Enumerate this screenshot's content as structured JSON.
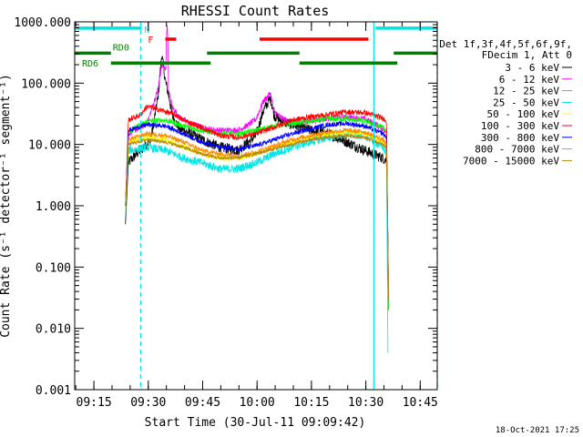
{
  "chart_data": {
    "type": "line",
    "title": "RHESSI Count Rates",
    "xlabel": "Start Time (30-Jul-11 09:09:42)",
    "ylabel": "Count Rate (s⁻¹ detector⁻¹ segment⁻¹)",
    "yscale": "log",
    "ylim": [
      0.001,
      1000
    ],
    "xlim_minutes": [
      0,
      100
    ],
    "y_ticks": [
      {
        "v": 1000,
        "label": "1000.000"
      },
      {
        "v": 100,
        "label": "100.000"
      },
      {
        "v": 10,
        "label": "10.000"
      },
      {
        "v": 1,
        "label": "1.000"
      },
      {
        "v": 0.1,
        "label": "0.100"
      },
      {
        "v": 0.01,
        "label": "0.010"
      },
      {
        "v": 0.001,
        "label": "0.001"
      }
    ],
    "x_ticks": [
      {
        "m": 5.3,
        "label": "09:15"
      },
      {
        "m": 20.3,
        "label": "09:30"
      },
      {
        "m": 35.3,
        "label": "09:45"
      },
      {
        "m": 50.3,
        "label": "10:00"
      },
      {
        "m": 65.3,
        "label": "10:15"
      },
      {
        "m": 80.3,
        "label": "10:30"
      },
      {
        "m": 95.3,
        "label": "10:45"
      }
    ],
    "legend": {
      "header": [
        "Det 1f,3f,4f,5f,6f,9f,",
        "FDecim 1, Att 0"
      ],
      "position": "right"
    },
    "vlines": [
      {
        "m": 18.2,
        "color": "#00e5e5",
        "style": "dashed"
      },
      {
        "m": 82.5,
        "color": "#00e5e5",
        "style": "solid"
      },
      {
        "m": 100.0,
        "color": "#00e5e5",
        "style": "dashed"
      }
    ],
    "flag_bars": [
      {
        "label": "",
        "color": "#00e5e5",
        "y": 0.017,
        "segments": [
          [
            0,
            18.5
          ],
          [
            83,
            100
          ]
        ]
      },
      {
        "label": "N",
        "color": "#00e5e5",
        "y": 0.02,
        "segments": []
      },
      {
        "label": "F",
        "color": "#ff0000",
        "y": 0.047,
        "segments": [
          [
            25,
            28
          ],
          [
            51,
            81
          ]
        ]
      },
      {
        "label": "RD0",
        "color": "#008000",
        "y": 0.085,
        "segments": [
          [
            0,
            10
          ],
          [
            36.5,
            62
          ],
          [
            88,
            100
          ]
        ]
      },
      {
        "label": "RD6",
        "color": "#008000",
        "y": 0.112,
        "segments": [
          [
            10,
            37.5
          ],
          [
            62,
            89
          ]
        ]
      }
    ],
    "time_range_minutes": [
      14,
      87
    ],
    "series": [
      {
        "name": "3 - 6 keV",
        "color": "#000000",
        "noise": 0.18,
        "spike": null,
        "points": [
          [
            14,
            0.5
          ],
          [
            14.8,
            5
          ],
          [
            17,
            7
          ],
          [
            19,
            9
          ],
          [
            21,
            12
          ],
          [
            23,
            60
          ],
          [
            24,
            300
          ],
          [
            25,
            110
          ],
          [
            26,
            60
          ],
          [
            27,
            28
          ],
          [
            29,
            18
          ],
          [
            32,
            15
          ],
          [
            35,
            12
          ],
          [
            40,
            9
          ],
          [
            45,
            8
          ],
          [
            48,
            11
          ],
          [
            50,
            14
          ],
          [
            52,
            35
          ],
          [
            54,
            58
          ],
          [
            55,
            30
          ],
          [
            57,
            24
          ],
          [
            60,
            21
          ],
          [
            65,
            17
          ],
          [
            70,
            15
          ],
          [
            75,
            11
          ],
          [
            80,
            8
          ],
          [
            85,
            6
          ],
          [
            86,
            5.5
          ],
          [
            86.6,
            0.02
          ]
        ]
      },
      {
        "name": "6 - 12 keV",
        "color": "#ff00ff",
        "noise": 0.1,
        "spike": {
          "m": 25.5,
          "peak": 800
        },
        "points": [
          [
            14,
            0.8
          ],
          [
            14.8,
            15
          ],
          [
            20,
            22
          ],
          [
            23,
            80
          ],
          [
            24,
            200
          ],
          [
            25.5,
            150
          ],
          [
            26,
            70
          ],
          [
            27,
            40
          ],
          [
            29,
            27
          ],
          [
            32,
            22
          ],
          [
            36,
            18
          ],
          [
            40,
            17
          ],
          [
            45,
            17
          ],
          [
            48,
            21
          ],
          [
            50,
            26
          ],
          [
            52,
            50
          ],
          [
            54,
            68
          ],
          [
            55,
            35
          ],
          [
            57,
            27
          ],
          [
            60,
            23
          ],
          [
            65,
            24
          ],
          [
            70,
            27
          ],
          [
            75,
            28
          ],
          [
            80,
            26
          ],
          [
            84,
            20
          ],
          [
            86,
            16
          ],
          [
            86.6,
            0.02
          ]
        ]
      },
      {
        "name": "12 - 25 keV",
        "color": "#00ff00",
        "noise": 0.09,
        "spike": null,
        "points": [
          [
            14,
            0.8
          ],
          [
            14.8,
            16
          ],
          [
            20,
            24
          ],
          [
            25,
            25
          ],
          [
            30,
            20
          ],
          [
            35,
            17
          ],
          [
            40,
            15
          ],
          [
            45,
            15
          ],
          [
            50,
            17
          ],
          [
            55,
            20
          ],
          [
            60,
            22
          ],
          [
            65,
            24
          ],
          [
            70,
            26
          ],
          [
            75,
            26
          ],
          [
            80,
            24
          ],
          [
            85,
            19
          ],
          [
            86,
            16
          ],
          [
            86.6,
            0.02
          ]
        ]
      },
      {
        "name": "25 - 50 keV",
        "color": "#00e5e5",
        "noise": 0.14,
        "spike": null,
        "points": [
          [
            14,
            0.7
          ],
          [
            14.8,
            8
          ],
          [
            20,
            9
          ],
          [
            25,
            8
          ],
          [
            30,
            6
          ],
          [
            35,
            5
          ],
          [
            40,
            4
          ],
          [
            45,
            4
          ],
          [
            50,
            5
          ],
          [
            55,
            7
          ],
          [
            60,
            9
          ],
          [
            65,
            11
          ],
          [
            70,
            13
          ],
          [
            75,
            15
          ],
          [
            80,
            14
          ],
          [
            85,
            9
          ],
          [
            86,
            7
          ],
          [
            86.4,
            0.004
          ]
        ]
      },
      {
        "name": "50 - 100 keV",
        "color": "#ffff00",
        "noise": 0.08,
        "spike": null,
        "points": [
          [
            14,
            0.8
          ],
          [
            14.8,
            11
          ],
          [
            20,
            13
          ],
          [
            25,
            12
          ],
          [
            30,
            9
          ],
          [
            35,
            7
          ],
          [
            40,
            6
          ],
          [
            45,
            6
          ],
          [
            50,
            7
          ],
          [
            55,
            9
          ],
          [
            60,
            11
          ],
          [
            65,
            13
          ],
          [
            70,
            15
          ],
          [
            75,
            16
          ],
          [
            80,
            15
          ],
          [
            85,
            11
          ],
          [
            86,
            9
          ],
          [
            86.6,
            0.03
          ]
        ]
      },
      {
        "name": "100 - 300 keV",
        "color": "#ff0000",
        "noise": 0.09,
        "spike": null,
        "points": [
          [
            14,
            1
          ],
          [
            14.8,
            25
          ],
          [
            18,
            30
          ],
          [
            20,
            42
          ],
          [
            24,
            36
          ],
          [
            28,
            30
          ],
          [
            30,
            25
          ],
          [
            35,
            19
          ],
          [
            40,
            14
          ],
          [
            45,
            13
          ],
          [
            50,
            15
          ],
          [
            55,
            19
          ],
          [
            60,
            25
          ],
          [
            65,
            28
          ],
          [
            70,
            31
          ],
          [
            75,
            34
          ],
          [
            80,
            33
          ],
          [
            85,
            27
          ],
          [
            86,
            24
          ],
          [
            86.6,
            0.03
          ]
        ]
      },
      {
        "name": "300 - 800 keV",
        "color": "#0000ff",
        "noise": 0.08,
        "spike": null,
        "points": [
          [
            14,
            1
          ],
          [
            14.8,
            17
          ],
          [
            20,
            21
          ],
          [
            25,
            20
          ],
          [
            30,
            15
          ],
          [
            35,
            11
          ],
          [
            40,
            9
          ],
          [
            45,
            8.5
          ],
          [
            50,
            9.5
          ],
          [
            55,
            12
          ],
          [
            60,
            15
          ],
          [
            65,
            18
          ],
          [
            70,
            21
          ],
          [
            75,
            22
          ],
          [
            80,
            20
          ],
          [
            85,
            15
          ],
          [
            86,
            13
          ],
          [
            86.6,
            0.03
          ]
        ]
      },
      {
        "name": "800 - 7000 keV",
        "color": "#ff8c00",
        "noise": 0.08,
        "spike": null,
        "points": [
          [
            14,
            1
          ],
          [
            14.8,
            12
          ],
          [
            20,
            15
          ],
          [
            25,
            14
          ],
          [
            30,
            11
          ],
          [
            35,
            8
          ],
          [
            40,
            7
          ],
          [
            45,
            6.5
          ],
          [
            50,
            7.5
          ],
          [
            55,
            9.5
          ],
          [
            60,
            12
          ],
          [
            65,
            14
          ],
          [
            70,
            16
          ],
          [
            75,
            17
          ],
          [
            80,
            16
          ],
          [
            85,
            12
          ],
          [
            86,
            10
          ],
          [
            86.6,
            0.03
          ]
        ]
      },
      {
        "name": "7000 - 15000 keV",
        "color": "#b8860b",
        "noise": 0.06,
        "spike": null,
        "points": [
          [
            14,
            1
          ],
          [
            14.8,
            10
          ],
          [
            20,
            12
          ],
          [
            25,
            11
          ],
          [
            30,
            9
          ],
          [
            35,
            7
          ],
          [
            40,
            6
          ],
          [
            45,
            6
          ],
          [
            50,
            7
          ],
          [
            55,
            8.5
          ],
          [
            60,
            10
          ],
          [
            65,
            12
          ],
          [
            70,
            13
          ],
          [
            75,
            14
          ],
          [
            80,
            13
          ],
          [
            85,
            10
          ],
          [
            86,
            9
          ],
          [
            86.6,
            0.03
          ]
        ]
      }
    ],
    "timestamp": "18-Oct-2021 17:25"
  }
}
